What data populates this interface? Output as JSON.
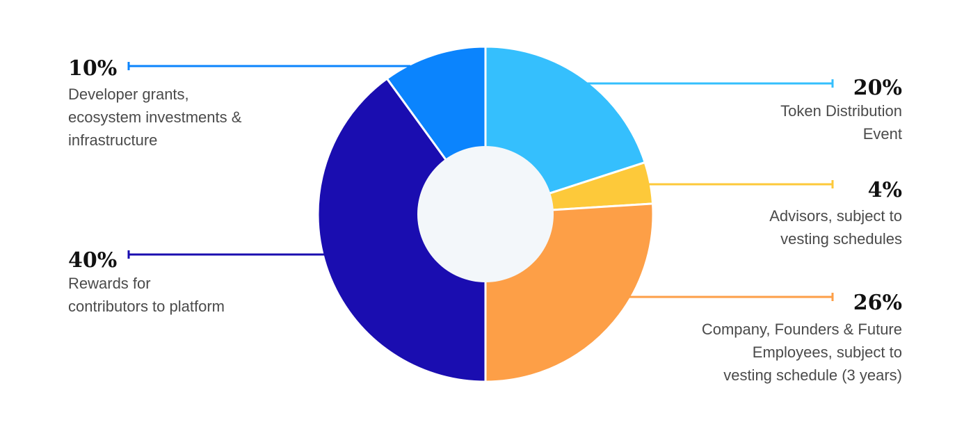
{
  "chart_data": {
    "type": "donut",
    "categories": [
      [
        "Token Distribution",
        "Event"
      ],
      [
        "Advisors, subject to",
        "vesting schedules"
      ],
      [
        "Company, Founders & Future",
        "Employees, subject to",
        "vesting schedule (3 years)"
      ],
      [
        "Rewards for",
        "contributors to platform"
      ],
      [
        "Developer grants,",
        "ecosystem investments &",
        "infrastructure"
      ]
    ],
    "values": [
      20,
      4,
      26,
      40,
      10
    ],
    "value_labels": [
      "20%",
      "4%",
      "26%",
      "40%",
      "10%"
    ],
    "colors": [
      "#35bffd",
      "#fdc93a",
      "#fd9f47",
      "#1a0db0",
      "#0b84fd"
    ]
  }
}
